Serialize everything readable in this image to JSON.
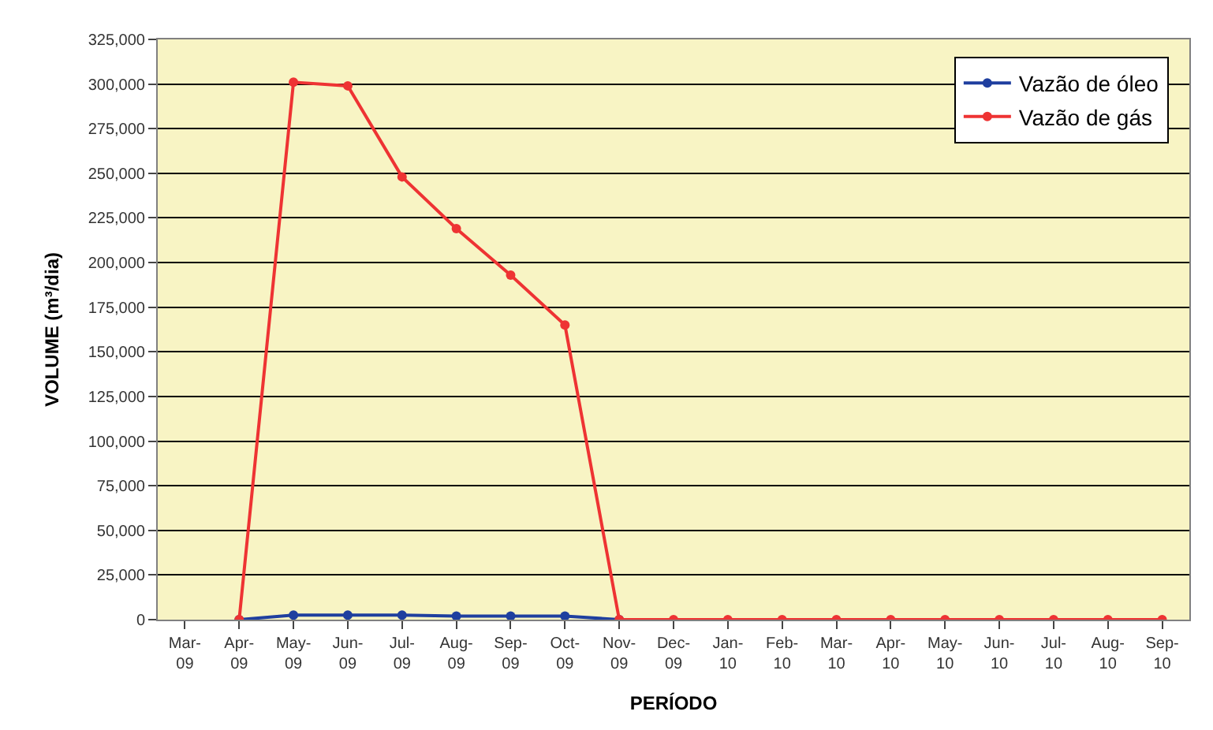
{
  "chart_data": {
    "type": "line",
    "xlabel": "PERÍODO",
    "ylabel": "VOLUME (m³/dia)",
    "categories": [
      "Mar-09",
      "Apr-09",
      "May-09",
      "Jun-09",
      "Jul-09",
      "Aug-09",
      "Sep-09",
      "Oct-09",
      "Nov-09",
      "Dec-09",
      "Jan-10",
      "Feb-10",
      "Mar-10",
      "Apr-10",
      "May-10",
      "Jun-10",
      "Jul-10",
      "Aug-10",
      "Sep-10"
    ],
    "series": [
      {
        "name": "Vazão de óleo",
        "color": "#1f3f9f",
        "values": [
          null,
          0,
          2500,
          2500,
          2500,
          2000,
          2000,
          2000,
          0,
          null,
          null,
          null,
          null,
          null,
          null,
          null,
          null,
          null,
          null
        ]
      },
      {
        "name": "Vazão de gás",
        "color": "#ee3333",
        "values": [
          null,
          0,
          301000,
          299000,
          248000,
          219000,
          193000,
          165000,
          0,
          0,
          0,
          0,
          0,
          0,
          0,
          0,
          0,
          0,
          0
        ]
      }
    ],
    "ylim": [
      0,
      325000
    ],
    "yticks": [
      {
        "value": 0,
        "label": "0"
      },
      {
        "value": 25000,
        "label": "25,000"
      },
      {
        "value": 50000,
        "label": "50,000"
      },
      {
        "value": 75000,
        "label": "75,000"
      },
      {
        "value": 100000,
        "label": "100,000"
      },
      {
        "value": 125000,
        "label": "125,000"
      },
      {
        "value": 150000,
        "label": "150,000"
      },
      {
        "value": 175000,
        "label": "175,000"
      },
      {
        "value": 200000,
        "label": "200,000"
      },
      {
        "value": 225000,
        "label": "225,000"
      },
      {
        "value": 250000,
        "label": "250,000"
      },
      {
        "value": 275000,
        "label": "275,000"
      },
      {
        "value": 300000,
        "label": "300,000"
      },
      {
        "value": 325000,
        "label": "325,000"
      }
    ],
    "grid": "y",
    "legend": "top right",
    "marker": "circle",
    "line_style": "solid"
  }
}
